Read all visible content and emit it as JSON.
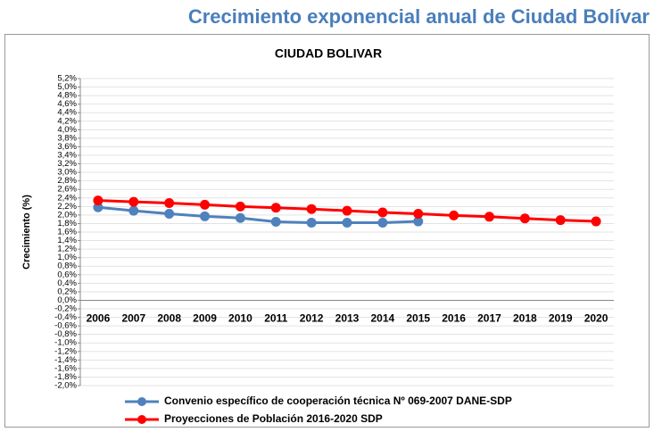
{
  "page_title": "Crecimiento exponencial anual de Ciudad Bolívar",
  "chart_data": {
    "type": "line",
    "title": "CIUDAD BOLIVAR",
    "y_label": "Crecimiento (%)",
    "categories": [
      "2006",
      "2007",
      "2008",
      "2009",
      "2010",
      "2011",
      "2012",
      "2013",
      "2014",
      "2015",
      "2016",
      "2017",
      "2018",
      "2019",
      "2020"
    ],
    "series": [
      {
        "name": "Convenio específico de cooperación técnica Nº 069-2007 DANE-SDP",
        "color": "#4f81bd",
        "values": [
          2.18,
          2.1,
          2.03,
          1.97,
          1.93,
          1.84,
          1.82,
          1.82,
          1.82,
          1.85,
          null,
          null,
          null,
          null,
          null
        ]
      },
      {
        "name": "Proyecciones de Población 2016-2020 SDP",
        "color": "#ff0000",
        "values": [
          2.34,
          2.31,
          2.28,
          2.24,
          2.2,
          2.17,
          2.14,
          2.1,
          2.06,
          2.03,
          1.99,
          1.96,
          1.92,
          1.88,
          1.85
        ]
      }
    ],
    "ylim": [
      -2.0,
      5.2
    ],
    "yticks": [
      {
        "value": -2.0,
        "label": "-2,0%"
      },
      {
        "value": -1.8,
        "label": "-1,8%"
      },
      {
        "value": -1.6,
        "label": "-1,6%"
      },
      {
        "value": -1.4,
        "label": "-1,4%"
      },
      {
        "value": -1.2,
        "label": "-1,2%"
      },
      {
        "value": -1.0,
        "label": "-1,0%"
      },
      {
        "value": -0.8,
        "label": "-0,8%"
      },
      {
        "value": -0.6,
        "label": "-0,6%"
      },
      {
        "value": -0.4,
        "label": "-0,4%"
      },
      {
        "value": -0.2,
        "label": "-0,2%"
      },
      {
        "value": 0,
        "label": "0,0%"
      },
      {
        "value": 0.2,
        "label": "0,2%"
      },
      {
        "value": 0.4,
        "label": "0,4%"
      },
      {
        "value": 0.6,
        "label": "0,6%"
      },
      {
        "value": 0.8,
        "label": "0,8%"
      },
      {
        "value": 1.0,
        "label": "1,0%"
      },
      {
        "value": 1.2,
        "label": "1,2%"
      },
      {
        "value": 1.4,
        "label": "1,4%"
      },
      {
        "value": 1.6,
        "label": "1,6%"
      },
      {
        "value": 1.8,
        "label": "1,8%"
      },
      {
        "value": 2.0,
        "label": "2,0%"
      },
      {
        "value": 2.2,
        "label": "2,2%"
      },
      {
        "value": 2.4,
        "label": "2,4%"
      },
      {
        "value": 2.6,
        "label": "2,6%"
      },
      {
        "value": 2.8,
        "label": "2,8%"
      },
      {
        "value": 3.0,
        "label": "3,0%"
      },
      {
        "value": 3.2,
        "label": "3,2%"
      },
      {
        "value": 3.4,
        "label": "3,4%"
      },
      {
        "value": 3.6,
        "label": "3,6%"
      },
      {
        "value": 3.8,
        "label": "3,8%"
      },
      {
        "value": 4.0,
        "label": "4,0%"
      },
      {
        "value": 4.2,
        "label": "4,2%"
      },
      {
        "value": 4.4,
        "label": "4,4%"
      },
      {
        "value": 4.6,
        "label": "4,6%"
      },
      {
        "value": 4.8,
        "label": "4,8%"
      },
      {
        "value": 5.0,
        "label": "5,0%"
      },
      {
        "value": 5.2,
        "label": "5,2%"
      }
    ],
    "grid": true,
    "legend": "bottom"
  }
}
